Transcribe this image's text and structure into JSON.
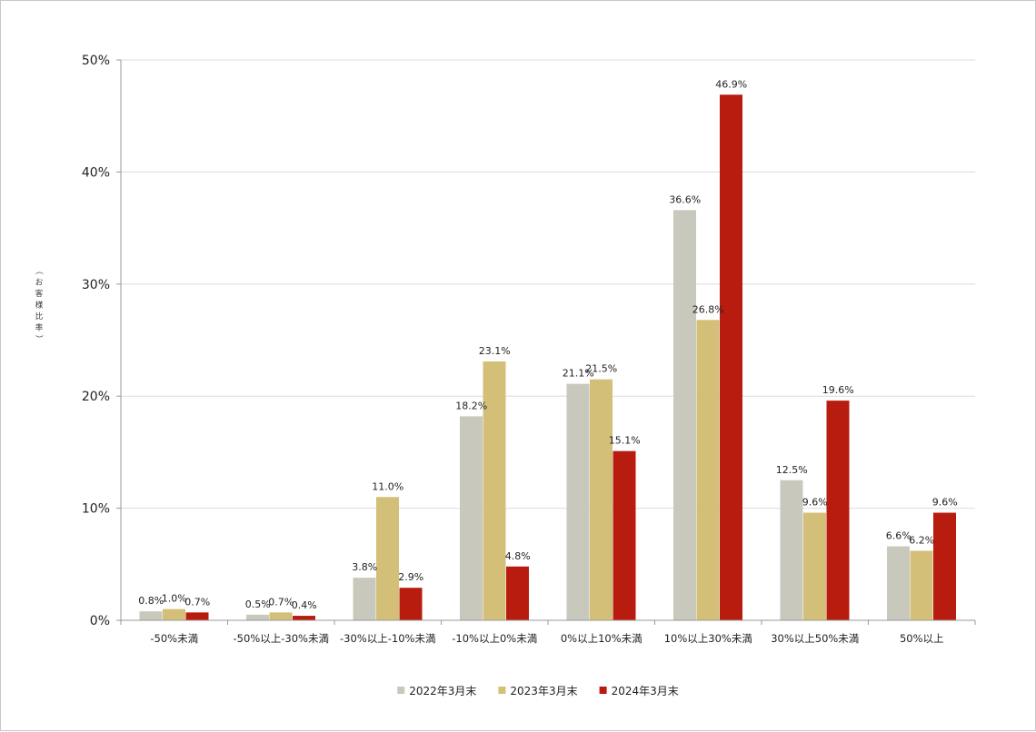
{
  "chart_data": {
    "type": "bar",
    "title": "",
    "xlabel": "",
    "ylabel": "（お客様比率）",
    "ylim": [
      0,
      50
    ],
    "yticks": [
      0,
      10,
      20,
      30,
      40,
      50
    ],
    "ytick_labels": [
      "0%",
      "10%",
      "20%",
      "30%",
      "40%",
      "50%"
    ],
    "value_suffix": "%",
    "grid": true,
    "legend_position": "bottom",
    "categories": [
      "-50%未満",
      "-50%以上-30%未満",
      "-30%以上-10%未満",
      "-10%以上0%未満",
      "0%以上10%未満",
      "10%以上30%未満",
      "30%以上50%未満",
      "50%以上"
    ],
    "series": [
      {
        "name": "2022年3月末",
        "color": "#c8c8bc",
        "values": [
          0.8,
          0.5,
          3.8,
          18.2,
          21.1,
          36.6,
          12.5,
          6.6
        ]
      },
      {
        "name": "2023年3月末",
        "color": "#d3bf78",
        "values": [
          1.0,
          0.7,
          11.0,
          23.1,
          21.5,
          26.8,
          9.6,
          6.2
        ]
      },
      {
        "name": "2024年3月末",
        "color": "#b81c0e",
        "values": [
          0.7,
          0.4,
          2.9,
          4.8,
          15.1,
          46.9,
          19.6,
          9.6
        ]
      }
    ]
  }
}
